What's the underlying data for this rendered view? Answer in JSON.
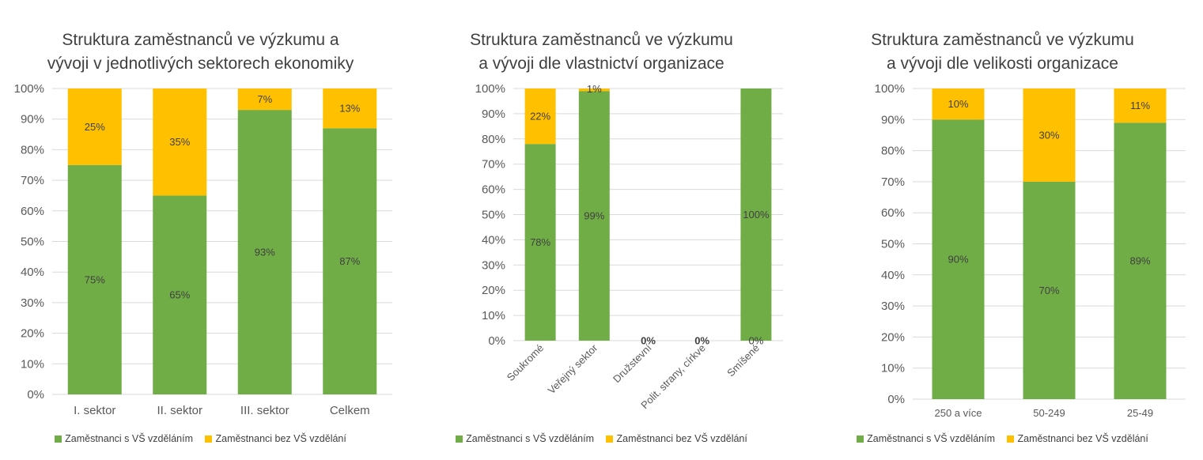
{
  "chart_data": [
    {
      "type": "bar",
      "stacked": true,
      "percent": true,
      "title_lines": [
        "Struktura zaměstnanců ve výzkumu a",
        "vývoji v jednotlivých sektorech ekonomiky"
      ],
      "categories": [
        "I. sektor",
        "II. sektor",
        "III. sektor",
        "Celkem"
      ],
      "series": [
        {
          "name": "Zaměstnanci s VŠ vzděláním",
          "color": "#70ad47",
          "values": [
            75,
            65,
            93,
            87
          ],
          "labels": [
            "75%",
            "65%",
            "93%",
            "87%"
          ]
        },
        {
          "name": "Zaměstnanci bez VŠ vzdělání",
          "color": "#ffc000",
          "values": [
            25,
            35,
            7,
            13
          ],
          "labels": [
            "25%",
            "35%",
            "7%",
            "13%"
          ]
        }
      ],
      "yticks": [
        "0%",
        "10%",
        "20%",
        "30%",
        "40%",
        "50%",
        "60%",
        "70%",
        "80%",
        "90%",
        "100%"
      ],
      "ylim": [
        0,
        100
      ],
      "grid": true,
      "legend": "bottom"
    },
    {
      "type": "bar",
      "stacked": true,
      "percent": true,
      "title_lines": [
        "Struktura zaměstnanců ve výzkumu",
        "a vývoji dle vlastnictví organizace"
      ],
      "categories": [
        "Soukromé",
        "Veřejný sektor",
        "Družstevní",
        "Polit. strany, církve",
        "Smíšené"
      ],
      "series": [
        {
          "name": "Zaměstnanci s VŠ vzděláním",
          "color": "#70ad47",
          "values": [
            78,
            99,
            0,
            0,
            100
          ],
          "labels": [
            "78%",
            "99%",
            "0%",
            "0%",
            "100%"
          ]
        },
        {
          "name": "Zaměstnanci bez VŠ vzdělání",
          "color": "#ffc000",
          "values": [
            22,
            1,
            0,
            0,
            0
          ],
          "labels": [
            "22%",
            "1%",
            "",
            "",
            "0%"
          ]
        }
      ],
      "yticks": [
        "0%",
        "10%",
        "20%",
        "30%",
        "40%",
        "50%",
        "60%",
        "70%",
        "80%",
        "90%",
        "100%"
      ],
      "ylim": [
        0,
        100
      ],
      "grid": true,
      "legend": "bottom"
    },
    {
      "type": "bar",
      "stacked": true,
      "percent": true,
      "title_lines": [
        "Struktura zaměstnanců ve výzkumu",
        "a vývoji dle velikosti organizace"
      ],
      "categories": [
        "250 a více",
        "50-249",
        "25-49"
      ],
      "series": [
        {
          "name": "Zaměstnanci s VŠ vzděláním",
          "color": "#70ad47",
          "values": [
            90,
            70,
            89
          ],
          "labels": [
            "90%",
            "70%",
            "89%"
          ]
        },
        {
          "name": "Zaměstnanci bez VŠ vzdělání",
          "color": "#ffc000",
          "values": [
            10,
            30,
            11
          ],
          "labels": [
            "10%",
            "30%",
            "11%"
          ]
        }
      ],
      "yticks": [
        "0%",
        "10%",
        "20%",
        "30%",
        "40%",
        "50%",
        "60%",
        "70%",
        "80%",
        "90%",
        "100%"
      ],
      "ylim": [
        0,
        100
      ],
      "grid": true,
      "legend": "bottom"
    }
  ]
}
